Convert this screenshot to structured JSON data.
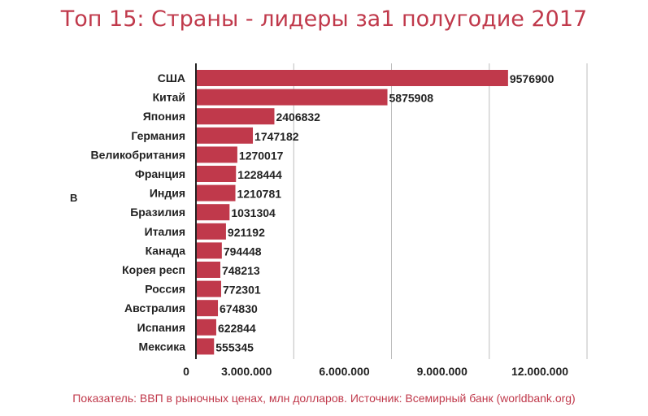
{
  "title": "Топ 15: Страны - лидеры за1 полугодие 2017",
  "stray_text": "B",
  "footer": "Показатель: ВВП в рыночных ценах, млн долларов. Источник: Всемирный банк (worldbank.org)",
  "colors": {
    "bar": "#c0394b",
    "title": "#c0394b",
    "grid": "#bdbdbd",
    "axis": "#222222"
  },
  "chart_data": {
    "type": "bar",
    "orientation": "horizontal",
    "categories": [
      "США",
      "Китай",
      "Япония",
      "Германия",
      "Великобритания",
      "Франция",
      "Индия",
      "Бразилия",
      "Италия",
      "Канада",
      "Корея респ",
      "Россия",
      "Австралия",
      "Испания",
      "Мексика"
    ],
    "values": [
      9576900,
      5875908,
      2406832,
      1747182,
      1270017,
      1228444,
      1210781,
      1031304,
      921192,
      794448,
      748213,
      772301,
      674830,
      622844,
      555345
    ],
    "value_labels": [
      "9576900",
      "5875908",
      "2406832",
      "1747182",
      "1270017",
      "1228444",
      "1210781",
      "1031304",
      "921192",
      "794448",
      "748213",
      "772301",
      "674830",
      "622844",
      "555345"
    ],
    "x_ticks": [
      0,
      3000000,
      6000000,
      9000000,
      12000000
    ],
    "x_tick_labels": [
      "0",
      "3.000.000",
      "6.000.000",
      "9.000.000",
      "12.000.000"
    ],
    "xlim": [
      0,
      12000000
    ],
    "grid": true,
    "legend": "none"
  }
}
